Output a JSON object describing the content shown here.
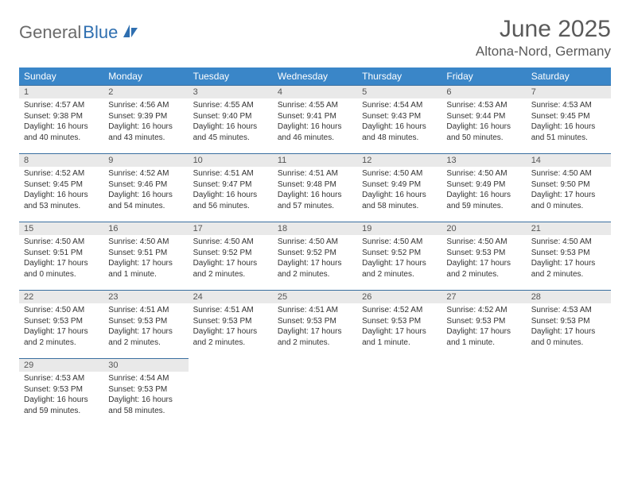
{
  "logo": {
    "text1": "General",
    "text2": "Blue"
  },
  "title": "June 2025",
  "location": "Altona-Nord, Germany",
  "colors": {
    "header_bg": "#3a86c8",
    "header_text": "#ffffff",
    "dayrow_border": "#3a6fa0",
    "daynum_bg": "#e9e9e9",
    "daynum_text": "#555555",
    "body_text": "#333333",
    "title_text": "#5a5a5a",
    "logo_gray": "#6a6a6a",
    "logo_blue": "#2f6fb0",
    "page_bg": "#ffffff"
  },
  "weekdays": [
    "Sunday",
    "Monday",
    "Tuesday",
    "Wednesday",
    "Thursday",
    "Friday",
    "Saturday"
  ],
  "grid": {
    "rows": 5,
    "cols": 7,
    "start_offset": 0,
    "days_in_month": 30
  },
  "days": {
    "1": {
      "sunrise": "4:57 AM",
      "sunset": "9:38 PM",
      "daylight": "16 hours and 40 minutes."
    },
    "2": {
      "sunrise": "4:56 AM",
      "sunset": "9:39 PM",
      "daylight": "16 hours and 43 minutes."
    },
    "3": {
      "sunrise": "4:55 AM",
      "sunset": "9:40 PM",
      "daylight": "16 hours and 45 minutes."
    },
    "4": {
      "sunrise": "4:55 AM",
      "sunset": "9:41 PM",
      "daylight": "16 hours and 46 minutes."
    },
    "5": {
      "sunrise": "4:54 AM",
      "sunset": "9:43 PM",
      "daylight": "16 hours and 48 minutes."
    },
    "6": {
      "sunrise": "4:53 AM",
      "sunset": "9:44 PM",
      "daylight": "16 hours and 50 minutes."
    },
    "7": {
      "sunrise": "4:53 AM",
      "sunset": "9:45 PM",
      "daylight": "16 hours and 51 minutes."
    },
    "8": {
      "sunrise": "4:52 AM",
      "sunset": "9:45 PM",
      "daylight": "16 hours and 53 minutes."
    },
    "9": {
      "sunrise": "4:52 AM",
      "sunset": "9:46 PM",
      "daylight": "16 hours and 54 minutes."
    },
    "10": {
      "sunrise": "4:51 AM",
      "sunset": "9:47 PM",
      "daylight": "16 hours and 56 minutes."
    },
    "11": {
      "sunrise": "4:51 AM",
      "sunset": "9:48 PM",
      "daylight": "16 hours and 57 minutes."
    },
    "12": {
      "sunrise": "4:50 AM",
      "sunset": "9:49 PM",
      "daylight": "16 hours and 58 minutes."
    },
    "13": {
      "sunrise": "4:50 AM",
      "sunset": "9:49 PM",
      "daylight": "16 hours and 59 minutes."
    },
    "14": {
      "sunrise": "4:50 AM",
      "sunset": "9:50 PM",
      "daylight": "17 hours and 0 minutes."
    },
    "15": {
      "sunrise": "4:50 AM",
      "sunset": "9:51 PM",
      "daylight": "17 hours and 0 minutes."
    },
    "16": {
      "sunrise": "4:50 AM",
      "sunset": "9:51 PM",
      "daylight": "17 hours and 1 minute."
    },
    "17": {
      "sunrise": "4:50 AM",
      "sunset": "9:52 PM",
      "daylight": "17 hours and 2 minutes."
    },
    "18": {
      "sunrise": "4:50 AM",
      "sunset": "9:52 PM",
      "daylight": "17 hours and 2 minutes."
    },
    "19": {
      "sunrise": "4:50 AM",
      "sunset": "9:52 PM",
      "daylight": "17 hours and 2 minutes."
    },
    "20": {
      "sunrise": "4:50 AM",
      "sunset": "9:53 PM",
      "daylight": "17 hours and 2 minutes."
    },
    "21": {
      "sunrise": "4:50 AM",
      "sunset": "9:53 PM",
      "daylight": "17 hours and 2 minutes."
    },
    "22": {
      "sunrise": "4:50 AM",
      "sunset": "9:53 PM",
      "daylight": "17 hours and 2 minutes."
    },
    "23": {
      "sunrise": "4:51 AM",
      "sunset": "9:53 PM",
      "daylight": "17 hours and 2 minutes."
    },
    "24": {
      "sunrise": "4:51 AM",
      "sunset": "9:53 PM",
      "daylight": "17 hours and 2 minutes."
    },
    "25": {
      "sunrise": "4:51 AM",
      "sunset": "9:53 PM",
      "daylight": "17 hours and 2 minutes."
    },
    "26": {
      "sunrise": "4:52 AM",
      "sunset": "9:53 PM",
      "daylight": "17 hours and 1 minute."
    },
    "27": {
      "sunrise": "4:52 AM",
      "sunset": "9:53 PM",
      "daylight": "17 hours and 1 minute."
    },
    "28": {
      "sunrise": "4:53 AM",
      "sunset": "9:53 PM",
      "daylight": "17 hours and 0 minutes."
    },
    "29": {
      "sunrise": "4:53 AM",
      "sunset": "9:53 PM",
      "daylight": "16 hours and 59 minutes."
    },
    "30": {
      "sunrise": "4:54 AM",
      "sunset": "9:53 PM",
      "daylight": "16 hours and 58 minutes."
    }
  },
  "labels": {
    "sunrise_prefix": "Sunrise: ",
    "sunset_prefix": "Sunset: ",
    "daylight_prefix": "Daylight: "
  }
}
